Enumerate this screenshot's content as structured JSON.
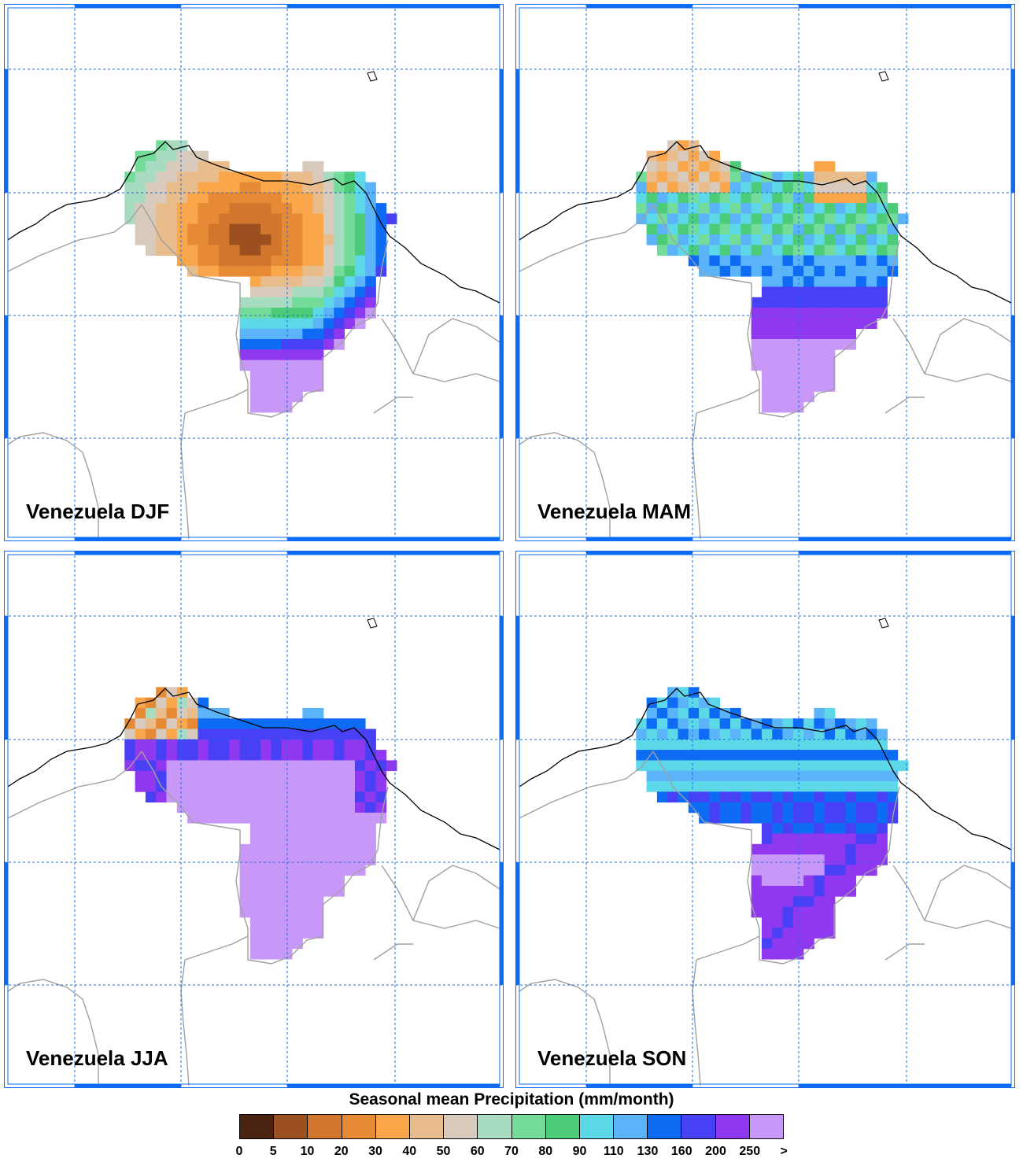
{
  "panels": [
    {
      "title": "Venezuela DJF",
      "season": "DJF"
    },
    {
      "title": "Venezuela MAM",
      "season": "MAM"
    },
    {
      "title": "Venezuela JJA",
      "season": "JJA"
    },
    {
      "title": "Venezuela SON",
      "season": "SON"
    }
  ],
  "colorbar": {
    "title": "Seasonal mean Precipitation (mm/month)",
    "labels": [
      "0",
      "5",
      "10",
      "20",
      "30",
      "40",
      "50",
      "60",
      "70",
      "80",
      "90",
      "110",
      "130",
      "160",
      "200",
      "250",
      ">"
    ],
    "colors": [
      "#4a2410",
      "#9c5020",
      "#d2762e",
      "#e68a36",
      "#f9a74a",
      "#e9bc8c",
      "#d8cabc",
      "#a8dcc0",
      "#74dc9a",
      "#4ccc78",
      "#5cd8e8",
      "#5cb4f8",
      "#0e6cf4",
      "#4840f4",
      "#9038f0",
      "#c898f8"
    ]
  },
  "map_style": {
    "frame_color": "#0e6cf4",
    "gridline_color": "#0e6cf4",
    "coastline_color": "#000000",
    "border_color": "#a0a0a0"
  }
}
